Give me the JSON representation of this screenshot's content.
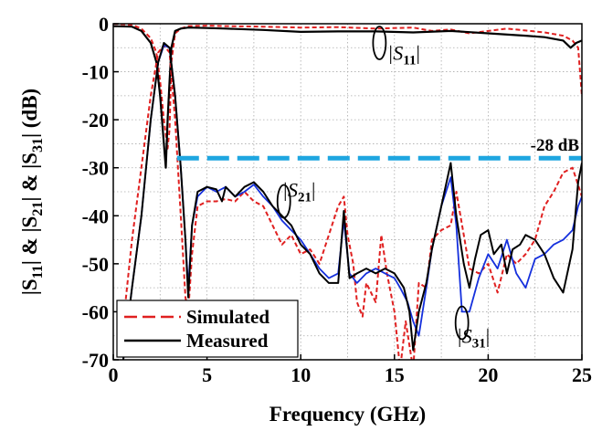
{
  "chart_data": {
    "type": "line",
    "title": "",
    "xlabel": "Frequency (GHz)",
    "ylabel_parts": [
      "|S",
      "11",
      "| & |S",
      "21",
      "| & |S",
      "31",
      "| (dB)"
    ],
    "xlim": [
      0,
      25
    ],
    "ylim": [
      -70,
      0
    ],
    "xticks": [
      0,
      5,
      10,
      15,
      20,
      25
    ],
    "yticks": [
      0,
      -10,
      -20,
      -30,
      -40,
      -50,
      -60,
      -70
    ],
    "grid": true,
    "reference_line": {
      "y": -28,
      "label": "-28 dB",
      "color": "#1EA6E0"
    },
    "legend": {
      "position": "bottom-left",
      "entries": [
        {
          "name": "Simulated",
          "color": "#E02020",
          "dash": true
        },
        {
          "name": "Measured",
          "color": "#000000",
          "dash": false
        }
      ]
    },
    "annotations": [
      {
        "id": "s11",
        "base": "|S",
        "sub": "11",
        "close": "|",
        "x": 14.2,
        "y": -4,
        "lx": 15.5,
        "ly": -7.5
      },
      {
        "id": "s21",
        "base": "|S",
        "sub": "21",
        "close": "|",
        "x": 9.1,
        "y": -37,
        "lx": 9.9,
        "ly": -36
      },
      {
        "id": "s31",
        "base": "|S",
        "sub": "31",
        "close": "|",
        "x": 18.6,
        "y": -62.3,
        "lx": 19.2,
        "ly": -66.5
      }
    ],
    "series": [
      {
        "name": "S11 Simulated",
        "color": "#E02020",
        "dash": true,
        "width": 2,
        "x": [
          0,
          1,
          1.5,
          2,
          2.3,
          2.5,
          2.7,
          2.9,
          3.0,
          3.1,
          3.3,
          3.6,
          4,
          5,
          6,
          8,
          10,
          12,
          14,
          16,
          17,
          18,
          19,
          20,
          21,
          22,
          23,
          24,
          24.5,
          24.8,
          25
        ],
        "y": [
          0,
          -0.2,
          -1,
          -3,
          -6,
          -12,
          -20,
          -26,
          -22,
          -8,
          -2,
          -1,
          -0.5,
          -0.4,
          -0.5,
          -0.6,
          -0.8,
          -0.7,
          -1,
          -0.8,
          -1.5,
          -1.2,
          -2,
          -1.5,
          -1,
          -1.4,
          -1.8,
          -2.5,
          -3.5,
          -5,
          -15
        ]
      },
      {
        "name": "S11 Measured",
        "color": "#000000",
        "dash": false,
        "width": 2.2,
        "x": [
          0,
          1,
          1.5,
          2,
          2.3,
          2.5,
          2.7,
          2.8,
          2.9,
          3.0,
          3.1,
          3.3,
          3.6,
          4,
          5,
          6,
          8,
          10,
          12,
          14,
          16,
          18,
          20,
          22,
          23,
          24,
          24.4,
          24.7,
          25
        ],
        "y": [
          -0.5,
          -0.6,
          -1.5,
          -4,
          -8,
          -15,
          -25,
          -30,
          -20,
          -12,
          -5,
          -1.5,
          -1,
          -0.8,
          -0.9,
          -1,
          -1.3,
          -1.7,
          -1.6,
          -1.6,
          -1.8,
          -1.5,
          -2,
          -2.5,
          -2.8,
          -3.5,
          -5,
          -4,
          -3.5
        ]
      },
      {
        "name": "S21/S31 Simulated",
        "color": "#E02020",
        "dash": true,
        "width": 2,
        "x": [
          0.3,
          1,
          2,
          2.4,
          2.7,
          3.0,
          3.3,
          3.6,
          3.85,
          4.0,
          4.2,
          4.5,
          5,
          5.5,
          6,
          6.5,
          7,
          7.5,
          8,
          8.5,
          9,
          9.5,
          10,
          10.5,
          11,
          11.5,
          12,
          12.3,
          12.5,
          12.8,
          13.0,
          13.3,
          13.5,
          14,
          14.3,
          14.6,
          15,
          15.3,
          15.6,
          16,
          16.3,
          16.7,
          17,
          17.5,
          18,
          18.3,
          18.7,
          19,
          19.5,
          20,
          20.5,
          21,
          21.5,
          22,
          22.5,
          23,
          23.5,
          24,
          24.5,
          25
        ],
        "y": [
          -71,
          -45,
          -15,
          -6,
          -4.5,
          -6,
          -20,
          -40,
          -57,
          -60,
          -48,
          -38,
          -37,
          -37,
          -36.5,
          -37,
          -35,
          -37,
          -38,
          -42,
          -46,
          -44,
          -48,
          -47,
          -50,
          -44,
          -38,
          -36,
          -44,
          -50,
          -58,
          -61,
          -54,
          -58,
          -44,
          -52,
          -60,
          -72,
          -62,
          -72,
          -54,
          -55,
          -45,
          -43,
          -42,
          -35,
          -44,
          -51,
          -52,
          -50,
          -56,
          -48,
          -50,
          -48,
          -45,
          -38,
          -35,
          -31,
          -30,
          -36
        ]
      },
      {
        "name": "S21/S31 Measured (blue)",
        "color": "#1530DD",
        "dash": false,
        "width": 1.8,
        "x": [
          0.5,
          1,
          1.5,
          2,
          2.4,
          2.7,
          3.0,
          3.3,
          3.6,
          3.85,
          4.0,
          4.2,
          4.5,
          5,
          5.5,
          6,
          6.5,
          7,
          7.5,
          8,
          8.5,
          9,
          9.5,
          10,
          10.5,
          11,
          11.5,
          12,
          12.3,
          12.6,
          13.0,
          13.5,
          14,
          14.5,
          15,
          15.3,
          15.7,
          16,
          16.3,
          16.7,
          17,
          17.5,
          18.0,
          18.3,
          18.6,
          19,
          19.5,
          20,
          20.5,
          21,
          21.5,
          22,
          22.5,
          23,
          23.5,
          24,
          24.5,
          24.8,
          25
        ],
        "y": [
          -71,
          -55,
          -40,
          -20,
          -8,
          -4.5,
          -5,
          -15,
          -30,
          -45,
          -55,
          -42,
          -36,
          -34,
          -35,
          -34,
          -36,
          -35,
          -33.5,
          -36,
          -38,
          -41,
          -43,
          -45,
          -48,
          -51,
          -53,
          -52,
          -41,
          -52,
          -54,
          -52,
          -51,
          -52,
          -53,
          -55,
          -58,
          -62,
          -65,
          -55,
          -47,
          -38,
          -32,
          -42,
          -60,
          -60,
          -53,
          -48,
          -51,
          -45,
          -52,
          -55,
          -49,
          -48,
          -46,
          -45,
          -43,
          -38,
          -36
        ]
      },
      {
        "name": "S21/S31 Measured (black)",
        "color": "#000000",
        "dash": false,
        "width": 2,
        "x": [
          0.5,
          1,
          1.5,
          2,
          2.4,
          2.7,
          3.0,
          3.3,
          3.6,
          3.85,
          4.0,
          4.2,
          4.5,
          5,
          5.5,
          5.8,
          6,
          6.5,
          7,
          7.5,
          8,
          8.5,
          9,
          9.5,
          10,
          10.5,
          11,
          11.5,
          12,
          12.3,
          12.6,
          13.0,
          13.5,
          14,
          14.5,
          15,
          15.5,
          15.8,
          16.0,
          16.3,
          16.7,
          17,
          17.5,
          18.0,
          18.3,
          18.7,
          19,
          19.3,
          19.6,
          20,
          20.3,
          20.7,
          21,
          21.3,
          21.7,
          22,
          22.5,
          23,
          23.5,
          24,
          24.5,
          24.8,
          25
        ],
        "y": [
          -71,
          -55,
          -40,
          -20,
          -8,
          -4,
          -5,
          -15,
          -30,
          -45,
          -57,
          -42,
          -35,
          -34,
          -34.5,
          -37,
          -34,
          -36,
          -34,
          -33,
          -35,
          -38,
          -40,
          -42,
          -46,
          -48,
          -52,
          -54,
          -54,
          -39,
          -53,
          -52,
          -51,
          -52,
          -51,
          -52,
          -55,
          -60,
          -68,
          -60,
          -54,
          -47,
          -38,
          -29,
          -40,
          -50,
          -55,
          -49,
          -44,
          -43,
          -48,
          -46,
          -52,
          -47,
          -46,
          -44,
          -45,
          -48,
          -53,
          -56,
          -47,
          -33,
          -29
        ]
      }
    ]
  }
}
